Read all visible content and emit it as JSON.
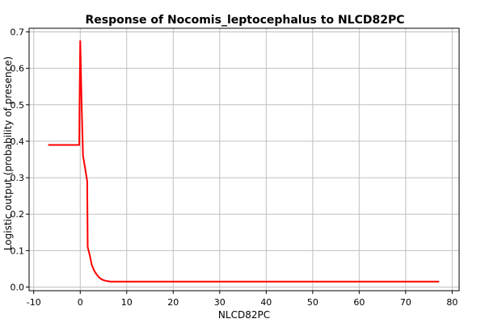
{
  "chart_data": {
    "type": "line",
    "title": "Response of Nocomis_leptocephalus to NLCD82PC",
    "xlabel": "NLCD82PC",
    "ylabel": "Logistic output (probability of presence)",
    "xlim": [
      -11,
      81.5
    ],
    "ylim": [
      -0.01,
      0.71
    ],
    "xticks": [
      -10,
      0,
      10,
      20,
      30,
      40,
      50,
      60,
      70,
      80
    ],
    "yticks": [
      0.0,
      0.1,
      0.2,
      0.3,
      0.4,
      0.5,
      0.6,
      0.7
    ],
    "ytick_labels": [
      "0.0",
      "0.1",
      "0.2",
      "0.3",
      "0.4",
      "0.5",
      "0.6",
      "0.7"
    ],
    "grid": true,
    "series": [
      {
        "color": "#ff0000",
        "x": [
          -6.9,
          -0.2,
          -0.15,
          0,
          0.1,
          0.3,
          0.6,
          1.0,
          1.5,
          1.6,
          2.0,
          2.5,
          3.0,
          3.5,
          4.0,
          4.5,
          5.0,
          5.5,
          6.0,
          6.5,
          7.0,
          10,
          20,
          40,
          60,
          77.2
        ],
        "y": [
          0.39,
          0.39,
          0.5,
          0.675,
          0.62,
          0.5,
          0.36,
          0.33,
          0.29,
          0.11,
          0.09,
          0.06,
          0.045,
          0.035,
          0.027,
          0.022,
          0.019,
          0.017,
          0.016,
          0.015,
          0.015,
          0.015,
          0.015,
          0.015,
          0.015,
          0.015
        ]
      }
    ]
  }
}
